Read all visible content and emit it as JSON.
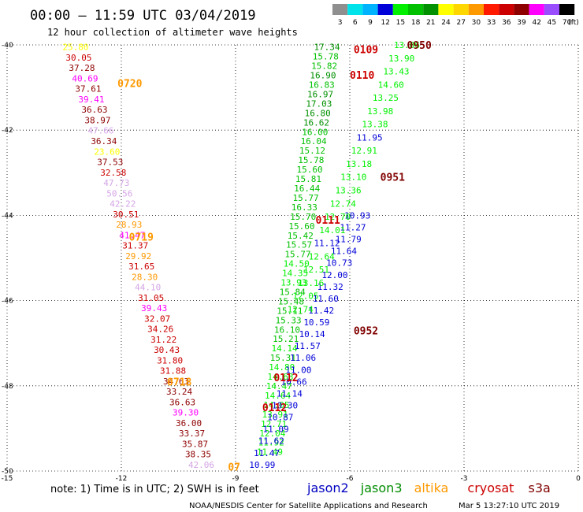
{
  "header": {
    "title": "00:00 – 11:59 UTC 03/04/2019",
    "subtitle": "12 hour collection of altimeter wave heights"
  },
  "colorbar": {
    "labels": [
      "3",
      "6",
      "9",
      "12",
      "15",
      "18",
      "21",
      "24",
      "27",
      "30",
      "33",
      "36",
      "39",
      "42",
      "45",
      "70"
    ],
    "unit": "(ft)",
    "colors": [
      "#8f8f8f",
      "#00e3ea",
      "#00b3ff",
      "#0000d8",
      "#00f000",
      "#00c000",
      "#009000",
      "#ffff00",
      "#ffd700",
      "#ff9900",
      "#ff1a00",
      "#cc0000",
      "#8e0000",
      "#ff00ff",
      "#9a4dff",
      "#000000"
    ]
  },
  "footer": {
    "note": "note: 1) Time is in UTC; 2) SWH is in feet",
    "credit": "NOAA/NESDIS Center for Satellite Applications and Research",
    "timestamp": "Mar  5 13:27:10 UTC 2019",
    "legend": [
      {
        "name": "jason2",
        "color": "#0000c0"
      },
      {
        "name": "jason3",
        "color": "#008c00"
      },
      {
        "name": "altika",
        "color": "#ff9900"
      },
      {
        "name": "cryosat",
        "color": "#cc0000"
      },
      {
        "name": "s3a",
        "color": "#800000"
      }
    ]
  },
  "chart_data": {
    "type": "scatter",
    "xlim": [
      -15,
      0
    ],
    "ylim": [
      -50,
      -40
    ],
    "x_ticks": [
      "-15",
      "-12",
      "-9",
      "-6",
      "-3",
      "0"
    ],
    "y_ticks": [
      "-40",
      "-42",
      "-44",
      "-46",
      "-48",
      "-50"
    ],
    "grid": true,
    "passes": [
      {
        "label": "0950",
        "color": "#800000",
        "x": -4.5,
        "y": -40.0
      },
      {
        "label": "0951",
        "color": "#800000",
        "x": -5.2,
        "y": -43.1
      },
      {
        "label": "0952",
        "color": "#800000",
        "x": -5.9,
        "y": -46.7
      },
      {
        "label": "0109",
        "color": "#cc0000",
        "x": -5.9,
        "y": -40.1
      },
      {
        "label": "0110",
        "color": "#cc0000",
        "x": -6.0,
        "y": -40.7
      },
      {
        "label": "0111",
        "color": "#cc0000",
        "x": -6.9,
        "y": -44.1
      },
      {
        "label": "0112",
        "color": "#cc0000",
        "x": -8.0,
        "y": -47.8
      },
      {
        "label": "0112",
        "color": "#cc0000",
        "x": -8.3,
        "y": -48.5
      },
      {
        "label": "0720",
        "color": "#ff9900",
        "x": -12.1,
        "y": -40.9
      },
      {
        "label": "0719",
        "color": "#ff9900",
        "x": -11.8,
        "y": -44.5
      },
      {
        "label": "0718",
        "color": "#ff9900",
        "x": -10.8,
        "y": -47.9
      },
      {
        "label": "07",
        "color": "#ff9900",
        "x": -9.2,
        "y": -49.9
      }
    ],
    "tracks": [
      {
        "x0": -13.2,
        "y0": -40.05,
        "x1": -9.9,
        "y1": -49.85,
        "values": [
          [
            "25.80",
            "#ffff00"
          ],
          [
            "30.05",
            "#cc0000"
          ],
          [
            "37.28",
            "#8e0000"
          ],
          [
            "40.69",
            "#ff00ff"
          ],
          [
            "37.61",
            "#8e0000"
          ],
          [
            "39.41",
            "#ff00ff"
          ],
          [
            "36.63",
            "#8e0000"
          ],
          [
            "38.97",
            "#8e0000"
          ],
          [
            "47.66",
            "#d5a6e6"
          ],
          [
            "36.34",
            "#8e0000"
          ],
          [
            "23.60",
            "#ffff00"
          ],
          [
            "37.53",
            "#8e0000"
          ],
          [
            "32.58",
            "#cc0000"
          ],
          [
            "47.73",
            "#d5a6e6"
          ],
          [
            "50.56",
            "#d5a6e6"
          ],
          [
            "42.22",
            "#d5a6e6"
          ],
          [
            "30.51",
            "#cc0000"
          ],
          [
            "28.93",
            "#ff9900"
          ],
          [
            "41.47",
            "#ff00ff"
          ],
          [
            "31.37",
            "#cc0000"
          ],
          [
            "29.92",
            "#ff9900"
          ],
          [
            "31.65",
            "#cc0000"
          ],
          [
            "28.30",
            "#ff9900"
          ],
          [
            "44.10",
            "#d5a6e6"
          ],
          [
            "31.05",
            "#cc0000"
          ],
          [
            "39.43",
            "#ff00ff"
          ],
          [
            "32.07",
            "#cc0000"
          ],
          [
            "34.26",
            "#cc0000"
          ],
          [
            "31.22",
            "#cc0000"
          ],
          [
            "30.43",
            "#cc0000"
          ],
          [
            "31.80",
            "#cc0000"
          ],
          [
            "31.88",
            "#cc0000"
          ],
          [
            "34.63",
            "#8e0000"
          ],
          [
            "33.24",
            "#8e0000"
          ],
          [
            "36.63",
            "#8e0000"
          ],
          [
            "39.30",
            "#ff00ff"
          ],
          [
            "36.00",
            "#8e0000"
          ],
          [
            "33.37",
            "#8e0000"
          ],
          [
            "35.87",
            "#8e0000"
          ],
          [
            "38.35",
            "#8e0000"
          ],
          [
            "42.06",
            "#d5a6e6"
          ]
        ]
      },
      {
        "x0": -6.6,
        "y0": -40.05,
        "x1": -8.1,
        "y1": -49.55,
        "values": [
          [
            "17.34",
            "#009000"
          ],
          [
            "15.78",
            "#00c000"
          ],
          [
            "15.82",
            "#00c000"
          ],
          [
            "16.90",
            "#009000"
          ],
          [
            "16.83",
            "#00c000"
          ],
          [
            "16.97",
            "#009000"
          ],
          [
            "17.03",
            "#009000"
          ],
          [
            "16.80",
            "#009000"
          ],
          [
            "16.62",
            "#009000"
          ],
          [
            "16.00",
            "#00c000"
          ],
          [
            "16.04",
            "#00c000"
          ],
          [
            "15.12",
            "#00c000"
          ],
          [
            "15.78",
            "#00c000"
          ],
          [
            "15.60",
            "#00c000"
          ],
          [
            "15.81",
            "#00c000"
          ],
          [
            "16.44",
            "#00c000"
          ],
          [
            "15.77",
            "#00c000"
          ],
          [
            "16.33",
            "#00c000"
          ],
          [
            "15.70",
            "#00c000"
          ],
          [
            "15.60",
            "#00c000"
          ],
          [
            "15.42",
            "#00c000"
          ],
          [
            "15.57",
            "#00c000"
          ],
          [
            "15.77",
            "#00c000"
          ],
          [
            "14.50",
            "#00f000"
          ],
          [
            "14.35",
            "#00f000"
          ],
          [
            "13.93",
            "#00f000"
          ],
          [
            "15.84",
            "#00c000"
          ],
          [
            "15.48",
            "#00c000"
          ],
          [
            "15.11",
            "#00c000"
          ],
          [
            "15.33",
            "#00c000"
          ],
          [
            "16.10",
            "#00c000"
          ],
          [
            "15.21",
            "#00c000"
          ],
          [
            "14.14",
            "#00f000"
          ],
          [
            "15.31",
            "#00c000"
          ],
          [
            "14.80",
            "#00f000"
          ],
          [
            "14.63",
            "#00f000"
          ],
          [
            "14.47",
            "#00f000"
          ],
          [
            "14.64",
            "#00f000"
          ],
          [
            "14.05",
            "#00f000"
          ],
          [
            "13.91",
            "#00f000"
          ],
          [
            "12.71",
            "#00f000"
          ],
          [
            "12.04",
            "#00f000"
          ],
          [
            "11.92",
            "#00f000"
          ],
          [
            "11.49",
            "#00f000"
          ]
        ]
      },
      {
        "x0": -5.8,
        "y0": -44.0,
        "x1": -8.3,
        "y1": -49.85,
        "values": [
          [
            "10.93",
            "#0000d8"
          ],
          [
            "11.27",
            "#0000d8"
          ],
          [
            "11.79",
            "#0000d8"
          ],
          [
            "11.64",
            "#0000d8"
          ],
          [
            "10.73",
            "#0000d8"
          ],
          [
            "12.00",
            "#0000d8"
          ],
          [
            "11.32",
            "#0000d8"
          ],
          [
            "11.60",
            "#0000d8"
          ],
          [
            "11.42",
            "#0000d8"
          ],
          [
            "10.59",
            "#0000d8"
          ],
          [
            "10.14",
            "#0000d8"
          ],
          [
            "11.57",
            "#0000d8"
          ],
          [
            "11.06",
            "#0000d8"
          ],
          [
            "11.00",
            "#0000d8"
          ],
          [
            "10.66",
            "#0000d8"
          ],
          [
            "11.14",
            "#0000d8"
          ],
          [
            "10.30",
            "#0000d8"
          ],
          [
            "10.87",
            "#0000d8"
          ],
          [
            "11.09",
            "#0000d8"
          ],
          [
            "11.62",
            "#0000d8"
          ],
          [
            "11.47",
            "#0000d8"
          ],
          [
            "10.99",
            "#0000d8"
          ]
        ]
      },
      {
        "x0": -4.5,
        "y0": -40.0,
        "x1": -7.3,
        "y1": -46.2,
        "values": [
          [
            "13.86",
            "#00f000"
          ],
          [
            "13.90",
            "#00f000"
          ],
          [
            "13.43",
            "#00f000"
          ],
          [
            "14.60",
            "#00f000"
          ],
          [
            "13.25",
            "#00f000"
          ],
          [
            "13.98",
            "#00f000"
          ],
          [
            "13.38",
            "#00f000"
          ],
          [
            "11.95",
            "#0000d8"
          ],
          [
            "12.91",
            "#00f000"
          ],
          [
            "13.18",
            "#00f000"
          ],
          [
            "13.10",
            "#00f000"
          ],
          [
            "13.36",
            "#00f000"
          ],
          [
            "12.74",
            "#00f000"
          ],
          [
            "12.70",
            "#00f000"
          ],
          [
            "14.01",
            "#00f000"
          ],
          [
            "11.12",
            "#0000d8"
          ],
          [
            "12.64",
            "#00f000"
          ],
          [
            "12.51",
            "#00f000"
          ],
          [
            "13.16",
            "#00f000"
          ],
          [
            "12.05",
            "#00f000"
          ],
          [
            "12.74",
            "#00f000"
          ]
        ]
      }
    ]
  }
}
